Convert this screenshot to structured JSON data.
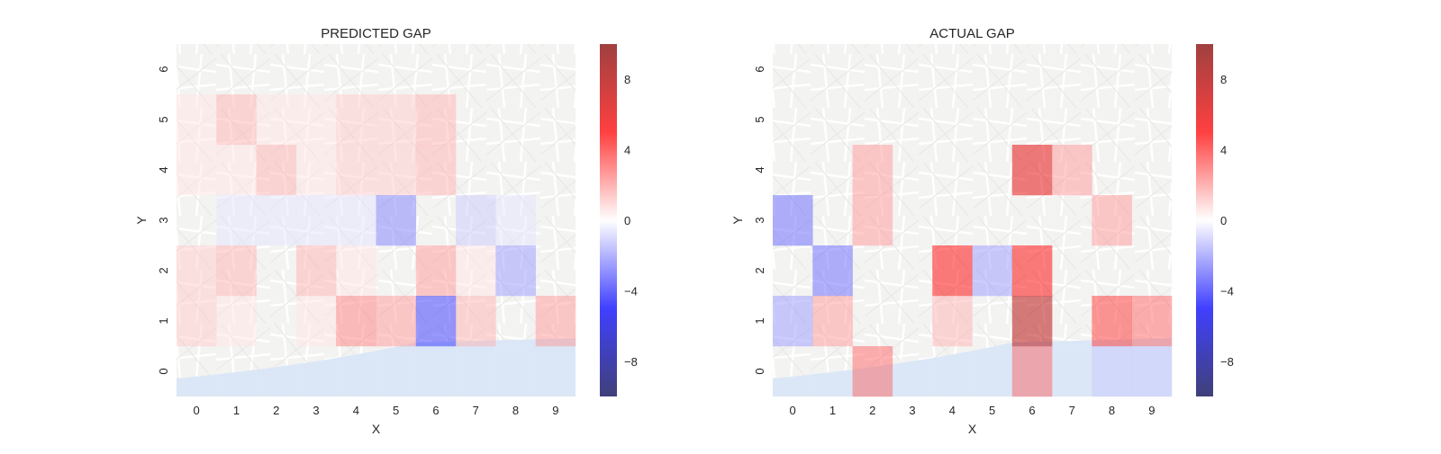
{
  "chart_data": [
    {
      "type": "heatmap",
      "title": "PREDICTED GAP",
      "xlabel": "X",
      "ylabel": "Y",
      "x_ticks": [
        "0",
        "1",
        "2",
        "3",
        "4",
        "5",
        "6",
        "7",
        "8",
        "9"
      ],
      "y_ticks": [
        "0",
        "1",
        "2",
        "3",
        "4",
        "5",
        "6"
      ],
      "colormap": "seismic",
      "vmin": -10,
      "vmax": 10,
      "colorbar_ticks": [
        "8",
        "4",
        "0",
        "−4",
        "−8"
      ],
      "colorbar_values": [
        8,
        4,
        0,
        -4,
        -8
      ],
      "values_rows_top_to_bottom_y6_to_y0": [
        [
          0,
          0,
          0,
          0,
          0,
          0,
          0,
          0,
          0,
          0
        ],
        [
          0.5,
          1.5,
          0.5,
          0.5,
          1,
          1,
          1.5,
          0,
          0,
          0
        ],
        [
          0.5,
          0.5,
          1.5,
          0.5,
          1,
          1,
          1.5,
          0,
          0,
          0
        ],
        [
          0,
          -0.5,
          -0.5,
          -0.5,
          -0.5,
          -2.5,
          0,
          -1,
          -0.5,
          0
        ],
        [
          1,
          1.5,
          0,
          1.5,
          0.5,
          0,
          2,
          0.5,
          -2,
          0
        ],
        [
          1,
          0.5,
          0,
          0.5,
          2.5,
          2,
          -4,
          1.5,
          0,
          2
        ],
        [
          0,
          0,
          0,
          0,
          0,
          0,
          0,
          0,
          0,
          0
        ]
      ]
    },
    {
      "type": "heatmap",
      "title": "ACTUAL GAP",
      "xlabel": "X",
      "ylabel": "Y",
      "x_ticks": [
        "0",
        "1",
        "2",
        "3",
        "4",
        "5",
        "6",
        "7",
        "8",
        "9"
      ],
      "y_ticks": [
        "0",
        "1",
        "2",
        "3",
        "4",
        "5",
        "6"
      ],
      "colormap": "seismic",
      "vmin": -10,
      "vmax": 10,
      "colorbar_ticks": [
        "8",
        "4",
        "0",
        "−4",
        "−8"
      ],
      "colorbar_values": [
        8,
        4,
        0,
        -4,
        -8
      ],
      "values_rows_top_to_bottom_y6_to_y0": [
        [
          0,
          0,
          0,
          0,
          0,
          0,
          0,
          0,
          0,
          0
        ],
        [
          0,
          0,
          0,
          0,
          0,
          0,
          0,
          0,
          0,
          0
        ],
        [
          0,
          0,
          2,
          0,
          0,
          0,
          6,
          2,
          0,
          0
        ],
        [
          -3,
          0,
          2,
          0,
          0,
          0,
          0,
          0,
          2,
          0
        ],
        [
          0,
          -3,
          0,
          0,
          5,
          -2,
          5,
          0,
          0,
          0
        ],
        [
          -2,
          2,
          0,
          0,
          1.5,
          0,
          8,
          0,
          4,
          3
        ],
        [
          0,
          0,
          3,
          0,
          0,
          0,
          3,
          0,
          -1,
          -1
        ]
      ]
    }
  ]
}
